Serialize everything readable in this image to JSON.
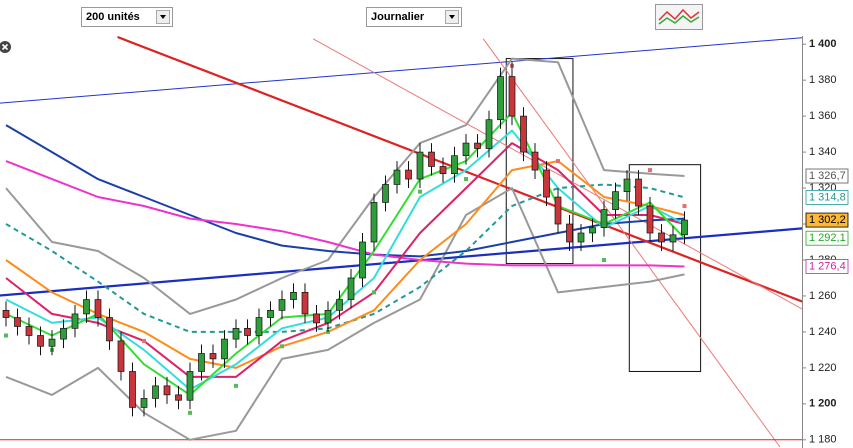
{
  "toolbar": {
    "units": "200 unités",
    "period": "Journalier"
  },
  "chart_data": {
    "type": "candlestick",
    "ylim": [
      1176,
      1404
    ],
    "yticks": [
      {
        "value": 1180,
        "label": "1 180"
      },
      {
        "value": 1200,
        "label": "1 200"
      },
      {
        "value": 1220,
        "label": "1 220"
      },
      {
        "value": 1240,
        "label": "1 240"
      },
      {
        "value": 1260,
        "label": "1 260"
      },
      {
        "value": 1280,
        "label": "1 280"
      },
      {
        "value": 1300,
        "label": "1 300"
      },
      {
        "value": 1320,
        "label": "1 320"
      },
      {
        "value": 1340,
        "label": "1 340"
      },
      {
        "value": 1360,
        "label": "1 360"
      },
      {
        "value": 1380,
        "label": "1 380"
      },
      {
        "value": 1400,
        "label": "1 400"
      }
    ],
    "up_color": "#2f9e3a",
    "down_color": "#c8353a",
    "open": [
      1252,
      1248,
      1243,
      1238,
      1232,
      1236,
      1242,
      1250,
      1258,
      1248,
      1235,
      1218,
      1198,
      1203,
      1210,
      1205,
      1202,
      1218,
      1228,
      1225,
      1236,
      1242,
      1238,
      1248,
      1252,
      1258,
      1262,
      1250,
      1245,
      1252,
      1258,
      1270,
      1290,
      1312,
      1322,
      1330,
      1325,
      1340,
      1332,
      1328,
      1338,
      1345,
      1342,
      1358,
      1382,
      1360,
      1340,
      1330,
      1315,
      1300,
      1290,
      1295,
      1298,
      1308,
      1318,
      1325,
      1310,
      1295,
      1290,
      1294
    ],
    "high": [
      1257,
      1253,
      1248,
      1243,
      1241,
      1247,
      1255,
      1263,
      1263,
      1253,
      1240,
      1223,
      1208,
      1215,
      1215,
      1210,
      1223,
      1233,
      1233,
      1241,
      1247,
      1247,
      1253,
      1257,
      1263,
      1267,
      1267,
      1255,
      1257,
      1263,
      1275,
      1295,
      1317,
      1327,
      1335,
      1335,
      1345,
      1345,
      1337,
      1343,
      1350,
      1350,
      1363,
      1387,
      1390,
      1365,
      1345,
      1335,
      1320,
      1305,
      1300,
      1303,
      1313,
      1323,
      1330,
      1330,
      1315,
      1300,
      1299,
      1307
    ],
    "low": [
      1243,
      1238,
      1233,
      1227,
      1227,
      1231,
      1237,
      1245,
      1243,
      1230,
      1213,
      1193,
      1193,
      1198,
      1200,
      1197,
      1197,
      1213,
      1220,
      1220,
      1231,
      1233,
      1233,
      1243,
      1247,
      1253,
      1245,
      1240,
      1240,
      1247,
      1253,
      1265,
      1285,
      1307,
      1317,
      1320,
      1320,
      1327,
      1323,
      1323,
      1333,
      1337,
      1337,
      1353,
      1355,
      1335,
      1325,
      1310,
      1295,
      1285,
      1285,
      1290,
      1293,
      1303,
      1313,
      1305,
      1290,
      1285,
      1285,
      1289
    ],
    "close": [
      1248,
      1243,
      1238,
      1232,
      1236,
      1242,
      1250,
      1258,
      1248,
      1235,
      1218,
      1198,
      1203,
      1210,
      1205,
      1202,
      1218,
      1228,
      1225,
      1236,
      1242,
      1238,
      1248,
      1252,
      1258,
      1262,
      1250,
      1245,
      1252,
      1258,
      1270,
      1290,
      1312,
      1322,
      1330,
      1325,
      1340,
      1332,
      1328,
      1338,
      1345,
      1342,
      1358,
      1382,
      1360,
      1340,
      1330,
      1315,
      1300,
      1290,
      1295,
      1298,
      1308,
      1318,
      1325,
      1310,
      1295,
      1290,
      1294,
      1302.2
    ],
    "series": [
      {
        "color": "#999999",
        "dash": false,
        "x": [
          0,
          4,
          8,
          12,
          16,
          20,
          24,
          28,
          32,
          36,
          40,
          44,
          48,
          52,
          56,
          59
        ],
        "values": [
          1320,
          1290,
          1285,
          1270,
          1250,
          1258,
          1270,
          1280,
          1315,
          1345,
          1355,
          1392,
          1390,
          1330,
          1328,
          1326.7
        ]
      },
      {
        "color": "#999999",
        "dash": false,
        "x": [
          0,
          4,
          8,
          12,
          16,
          20,
          24,
          28,
          32,
          36,
          40,
          44,
          48,
          52,
          56,
          59
        ],
        "values": [
          1215,
          1205,
          1220,
          1195,
          1180,
          1185,
          1225,
          1230,
          1245,
          1258,
          1305,
          1320,
          1262,
          1265,
          1268,
          1272
        ]
      },
      {
        "color": "#1a3fa8",
        "dash": false,
        "x": [
          0,
          4,
          8,
          12,
          16,
          20,
          24,
          28,
          32,
          36,
          40,
          44,
          48,
          52,
          56,
          59
        ],
        "values": [
          1355,
          1340,
          1325,
          1315,
          1305,
          1295,
          1288,
          1285,
          1283,
          1282,
          1285,
          1290,
          1295,
          1300,
          1302,
          1303
        ]
      },
      {
        "color": "#ee33cc",
        "dash": false,
        "x": [
          0,
          4,
          8,
          12,
          16,
          20,
          24,
          28,
          32,
          36,
          40,
          44,
          48,
          52,
          56,
          59
        ],
        "values": [
          1335,
          1325,
          1315,
          1310,
          1303,
          1300,
          1296,
          1290,
          1283,
          1280,
          1278,
          1277,
          1277,
          1277,
          1277,
          1276.4
        ]
      },
      {
        "color": "#229999",
        "dash": true,
        "x": [
          0,
          4,
          8,
          12,
          16,
          20,
          24,
          28,
          32,
          36,
          40,
          44,
          48,
          52,
          56,
          59
        ],
        "values": [
          1300,
          1285,
          1268,
          1250,
          1240,
          1240,
          1240,
          1242,
          1250,
          1265,
          1285,
          1310,
          1320,
          1322,
          1320,
          1314.8
        ]
      },
      {
        "color": "#ff8c1a",
        "dash": false,
        "x": [
          0,
          4,
          8,
          12,
          16,
          20,
          24,
          28,
          32,
          36,
          40,
          44,
          48,
          52,
          56,
          59
        ],
        "values": [
          1280,
          1262,
          1250,
          1240,
          1225,
          1220,
          1232,
          1240,
          1252,
          1280,
          1300,
          1330,
          1335,
          1315,
          1310,
          1305
        ]
      },
      {
        "color": "#dd2266",
        "dash": false,
        "x": [
          0,
          4,
          8,
          12,
          16,
          20,
          24,
          28,
          32,
          36,
          40,
          44,
          48,
          52,
          56,
          59
        ],
        "values": [
          1270,
          1250,
          1245,
          1235,
          1215,
          1215,
          1235,
          1245,
          1262,
          1295,
          1320,
          1345,
          1330,
          1305,
          1305,
          1300
        ]
      },
      {
        "color": "#33dddd",
        "dash": false,
        "x": [
          0,
          4,
          8,
          12,
          16,
          20,
          24,
          28,
          32,
          36,
          40,
          44,
          48,
          52,
          56,
          59
        ],
        "values": [
          1258,
          1245,
          1248,
          1230,
          1208,
          1222,
          1242,
          1248,
          1270,
          1315,
          1330,
          1352,
          1320,
          1298,
          1310,
          1300
        ]
      },
      {
        "color": "#33dd33",
        "dash": false,
        "x": [
          0,
          4,
          8,
          12,
          16,
          20,
          24,
          28,
          32,
          36,
          40,
          44,
          48,
          52,
          56,
          59
        ],
        "values": [
          1250,
          1238,
          1250,
          1222,
          1205,
          1228,
          1248,
          1250,
          1285,
          1325,
          1335,
          1362,
          1310,
          1300,
          1312,
          1292.1
        ]
      }
    ],
    "sar": {
      "up_color": "#55bb55",
      "down_color": "#e07070",
      "x": [
        0,
        4,
        8,
        12,
        16,
        20,
        24,
        28,
        32,
        36,
        40,
        44,
        48,
        52,
        56,
        59
      ],
      "values": [
        1238,
        1230,
        1255,
        1235,
        1195,
        1210,
        1232,
        1240,
        1262,
        1318,
        1325,
        1388,
        1335,
        1280,
        1330,
        1310
      ]
    },
    "trendlines": [
      {
        "color": "#2233cc",
        "style": "thin",
        "x": [
          -1,
          70
        ],
        "values": [
          1367,
          1404
        ]
      },
      {
        "color": "#1a2fbf",
        "style": "thick",
        "x": [
          -1,
          70
        ],
        "values": [
          1260,
          1298
        ]
      },
      {
        "color": "#dd2222",
        "style": "thick",
        "x": [
          9.7,
          70
        ],
        "values": [
          1404,
          1255
        ]
      },
      {
        "color": "#ee7777",
        "style": "thin",
        "x": [
          26.7,
          70
        ],
        "values": [
          1403,
          1250
        ]
      },
      {
        "color": "#ee7777",
        "style": "thin",
        "x": [
          41.5,
          67.3
        ],
        "values": [
          1403,
          1176
        ]
      },
      {
        "color": "#dd2222",
        "style": "thin",
        "x": [
          -1,
          70
        ],
        "values": [
          1180,
          1180
        ]
      }
    ],
    "boxes": [
      {
        "x": [
          43.5,
          49.3
        ],
        "values": [
          1392,
          1278
        ]
      },
      {
        "x": [
          54.2,
          60.4
        ],
        "values": [
          1333,
          1218
        ]
      }
    ],
    "last_values": [
      {
        "value": 1326.7,
        "label": "1 326,7",
        "color": "#555555",
        "fill": "#ffffff"
      },
      {
        "value": 1314.8,
        "label": "1 314,8",
        "color": "#229999",
        "fill": "#ffffff"
      },
      {
        "value": 1302.2,
        "label": "1 302,2",
        "color": "#000000",
        "fill": "#ffb833"
      },
      {
        "value": 1292.1,
        "label": "1 292,1",
        "color": "#22aa22",
        "fill": "#ffffff"
      },
      {
        "value": 1276.4,
        "label": "1 276,4",
        "color": "#cc22aa",
        "fill": "#ffffff"
      }
    ]
  }
}
